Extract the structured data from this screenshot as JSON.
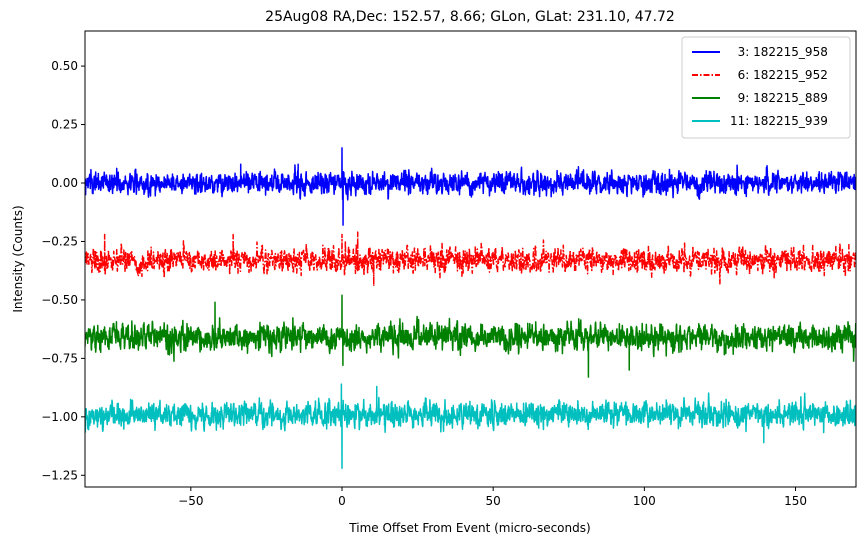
{
  "chart_data": {
    "type": "line",
    "title": "25Aug08 RA,Dec:  152.57,   8.66; GLon, GLat:  231.10,  47.72",
    "xlabel": "Time Offset From Event (micro-seconds)",
    "ylabel": "Intensity (Counts)",
    "xlim": [
      -85,
      170
    ],
    "ylim": [
      -1.3,
      0.65
    ],
    "xticks": [
      -50,
      0,
      50,
      100,
      150
    ],
    "xtick_labels": [
      "−50",
      "0",
      "50",
      "100",
      "150"
    ],
    "yticks": [
      0.5,
      0.25,
      0.0,
      -0.25,
      -0.5,
      -0.75,
      -1.0,
      -1.25
    ],
    "ytick_labels": [
      "0.50",
      "0.25",
      "0.00",
      "−0.25",
      "−0.50",
      "−0.75",
      "−1.00",
      "−1.25"
    ],
    "grid": false,
    "legend_position": "top-right",
    "series": [
      {
        "name": "3: 182215_958",
        "legend_label": "  3: 182215_958",
        "color": "#0000ff",
        "dash": "solid",
        "baseline": 0.0,
        "noise": 0.022,
        "spikes": [
          {
            "x": 0.0,
            "y": 0.15
          },
          {
            "x": 0.2,
            "y": -0.07
          },
          {
            "x": 0.35,
            "y": -0.18
          },
          {
            "x": -33.5,
            "y": 0.08
          },
          {
            "x": -14.5,
            "y": 0.08
          },
          {
            "x": 22.0,
            "y": -0.05
          }
        ]
      },
      {
        "name": "6: 182215_952",
        "legend_label": "  6: 182215_952",
        "color": "#ff0000",
        "dash": "dashdot",
        "baseline": -0.33,
        "noise": 0.024,
        "spikes": [
          {
            "x": 0.0,
            "y": -0.22
          },
          {
            "x": 5.2,
            "y": -0.21
          },
          {
            "x": -36.0,
            "y": -0.22
          },
          {
            "x": -78.5,
            "y": -0.22
          },
          {
            "x": 10.5,
            "y": -0.44
          }
        ]
      },
      {
        "name": "9: 182215_889",
        "legend_label": "  9: 182215_889",
        "color": "#008000",
        "dash": "solid",
        "baseline": -0.66,
        "noise": 0.026,
        "spikes": [
          {
            "x": 0.0,
            "y": -0.48
          },
          {
            "x": 0.3,
            "y": -0.78
          },
          {
            "x": -42.0,
            "y": -0.51
          },
          {
            "x": 81.5,
            "y": -0.83
          },
          {
            "x": 95.0,
            "y": -0.8
          }
        ]
      },
      {
        "name": "11: 182215_939",
        "legend_label": "11: 182215_939",
        "color": "#00bfbf",
        "dash": "solid",
        "baseline": -0.99,
        "noise": 0.024,
        "spikes": [
          {
            "x": 0.0,
            "y": -1.22
          },
          {
            "x": -0.2,
            "y": -0.86
          },
          {
            "x": 0.4,
            "y": -0.93
          },
          {
            "x": 11.5,
            "y": -0.87
          },
          {
            "x": 139.5,
            "y": -1.11
          }
        ]
      }
    ]
  }
}
